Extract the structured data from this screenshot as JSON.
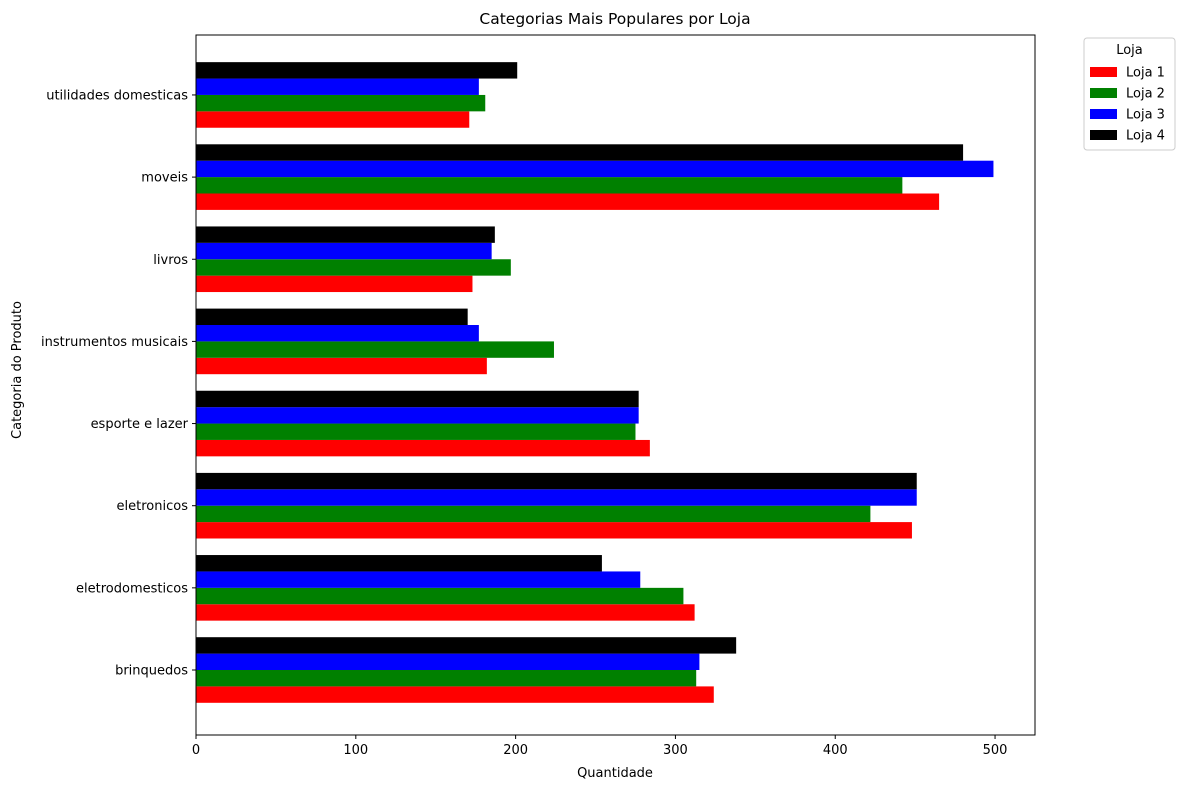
{
  "chart_data": {
    "type": "bar",
    "orientation": "horizontal",
    "title": "Categorias Mais Populares por Loja",
    "xlabel": "Quantidade",
    "ylabel": "Categoria do Produto",
    "xlim": [
      0,
      525
    ],
    "xticks": [
      0,
      100,
      200,
      300,
      400,
      500
    ],
    "grid": false,
    "legend_title": "Loja",
    "legend_position": "outside-top-right",
    "categories": [
      "brinquedos",
      "eletrodomesticos",
      "eletronicos",
      "esporte e lazer",
      "instrumentos musicais",
      "livros",
      "moveis",
      "utilidades domesticas"
    ],
    "series": [
      {
        "name": "Loja 1",
        "color": "#ff0000",
        "values": [
          324,
          312,
          448,
          284,
          182,
          173,
          465,
          171
        ]
      },
      {
        "name": "Loja 2",
        "color": "#008000",
        "values": [
          313,
          305,
          422,
          275,
          224,
          197,
          442,
          181
        ]
      },
      {
        "name": "Loja 3",
        "color": "#0000ff",
        "values": [
          315,
          278,
          451,
          277,
          177,
          185,
          499,
          177
        ]
      },
      {
        "name": "Loja 4",
        "color": "#000000",
        "values": [
          338,
          254,
          451,
          277,
          170,
          187,
          480,
          201
        ]
      }
    ]
  }
}
